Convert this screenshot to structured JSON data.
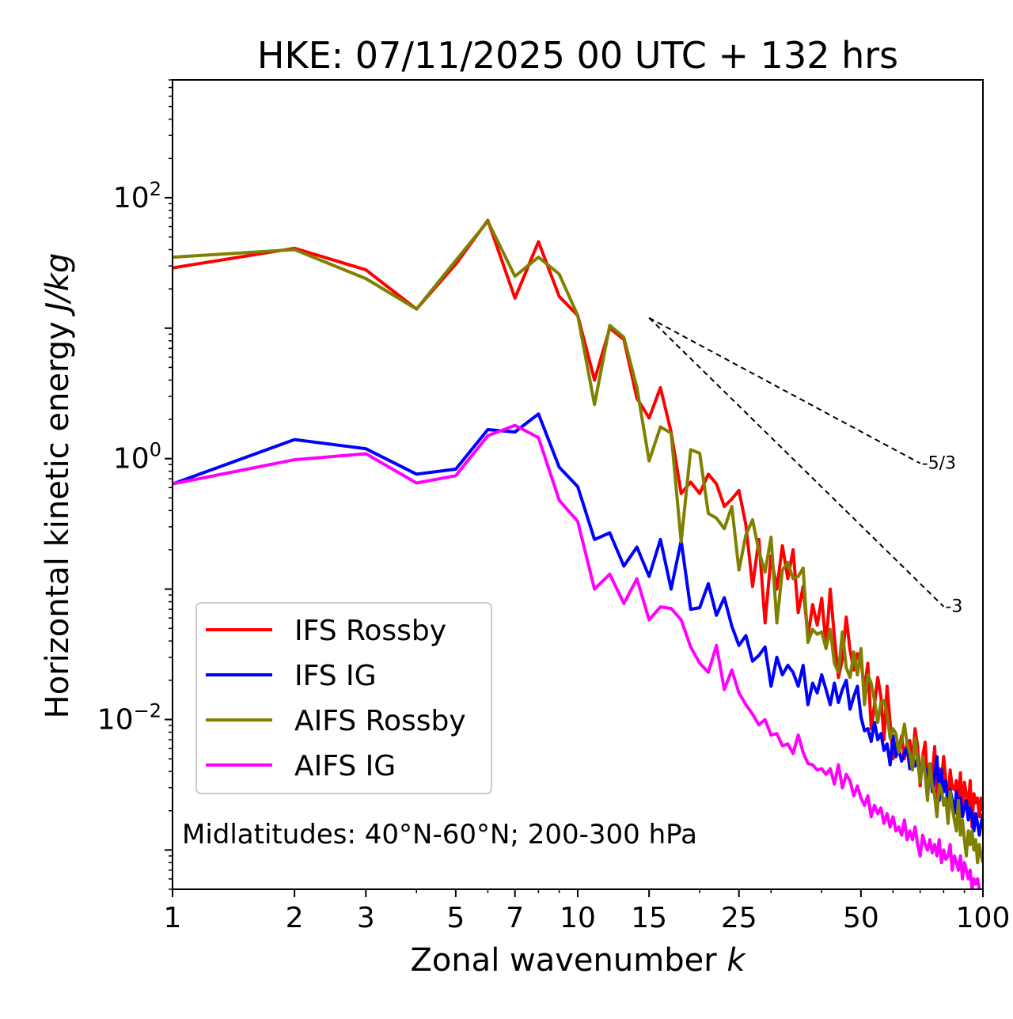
{
  "chart_data": {
    "type": "line",
    "title": "HKE: 07/11/2025 00 UTC + 132 hrs",
    "xlabel": "Zonal wavenumber",
    "xlabel_var": "k",
    "ylabel": "Horizontal kinetic energy",
    "ylabel_unit": "J/kg",
    "xscale": "log",
    "yscale": "log",
    "xlim": [
      1,
      100
    ],
    "ylim": [
      0.0005,
      800
    ],
    "x_tick_values": [
      1,
      2,
      3,
      5,
      7,
      10,
      15,
      25,
      50,
      100
    ],
    "x_tick_labels": [
      "1",
      "2",
      "3",
      "5",
      "7",
      "10",
      "15",
      "25",
      "50",
      "100"
    ],
    "y_tick_values": [
      100,
      1,
      0.01
    ],
    "y_tick_base": "10",
    "y_tick_exponents": [
      "2",
      "0",
      "−2"
    ],
    "annotation": "Midlatitudes: 40°N-60°N; 200-300 hPa",
    "legend_position": "lower-left",
    "reference_slopes": [
      {
        "label": "-5/3",
        "points": [
          [
            15,
            12
          ],
          [
            70,
            0.92
          ]
        ]
      },
      {
        "label": "-3",
        "points": [
          [
            15,
            12
          ],
          [
            80,
            0.0734
          ]
        ]
      }
    ],
    "series": [
      {
        "name": "IFS Rossby",
        "color": "#ff0000",
        "x": [
          1,
          2,
          3,
          4,
          5,
          6,
          7,
          8,
          9,
          10,
          11,
          12,
          13,
          14,
          15,
          16,
          17,
          18,
          19,
          20,
          21,
          22,
          23,
          24,
          25,
          26,
          27,
          28,
          29,
          30,
          31,
          32,
          33,
          34,
          35,
          36,
          37,
          38,
          39,
          40,
          41,
          42,
          43,
          44,
          45,
          46,
          47,
          48,
          49,
          50,
          51,
          52,
          53,
          54,
          55,
          56,
          57,
          58,
          59,
          60,
          61,
          62,
          63,
          64,
          65,
          66,
          67,
          68,
          69,
          70,
          71,
          72,
          73,
          74,
          75,
          76,
          77,
          78,
          79,
          80,
          81,
          82,
          83,
          84,
          85,
          86,
          87,
          88,
          89,
          90,
          91,
          92,
          93,
          94,
          95,
          96,
          97,
          98,
          99,
          100
        ],
        "y": [
          29,
          41,
          28,
          14,
          31,
          67,
          17,
          46,
          17.5,
          12.5,
          4,
          10,
          8.2,
          2.9,
          2.05,
          3.5,
          1.6,
          0.54,
          0.66,
          0.54,
          0.76,
          0.64,
          0.43,
          0.49,
          0.57,
          0.31,
          0.105,
          0.24,
          0.055,
          0.18,
          0.1,
          0.215,
          0.12,
          0.2,
          0.066,
          0.105,
          0.043,
          0.076,
          0.053,
          0.085,
          0.037,
          0.1,
          0.043,
          0.021,
          0.029,
          0.061,
          0.034,
          0.024,
          0.032,
          0.028,
          0.017,
          0.027,
          0.0085,
          0.013,
          0.021,
          0.015,
          0.007,
          0.018,
          0.0095,
          0.005,
          0.0065,
          0.0058,
          0.0075,
          0.005,
          0.0065,
          0.0069,
          0.0047,
          0.0085,
          0.0062,
          0.0031,
          0.0052,
          0.0067,
          0.0034,
          0.0045,
          0.0037,
          0.0062,
          0.0024,
          0.0042,
          0.0034,
          0.0052,
          0.0034,
          0.0022,
          0.0041,
          0.003,
          0.0029,
          0.0034,
          0.0023,
          0.0039,
          0.0019,
          0.0033,
          0.0027,
          0.0022,
          0.0034,
          0.0015,
          0.0027,
          0.0023,
          0.0025,
          0.0018,
          0.0025,
          0.002
        ]
      },
      {
        "name": "IFS IG",
        "color": "#0000ff",
        "x": [
          1,
          2,
          3,
          4,
          5,
          6,
          7,
          8,
          9,
          10,
          11,
          12,
          13,
          14,
          15,
          16,
          17,
          18,
          19,
          20,
          21,
          22,
          23,
          24,
          25,
          26,
          27,
          28,
          29,
          30,
          31,
          32,
          33,
          34,
          35,
          36,
          37,
          38,
          39,
          40,
          41,
          42,
          43,
          44,
          45,
          46,
          47,
          48,
          49,
          50,
          51,
          52,
          53,
          54,
          55,
          56,
          57,
          58,
          59,
          60,
          61,
          62,
          63,
          64,
          65,
          66,
          67,
          68,
          69,
          70,
          71,
          72,
          73,
          74,
          75,
          76,
          77,
          78,
          79,
          80,
          81,
          82,
          83,
          84,
          85,
          86,
          87,
          88,
          89,
          90,
          91,
          92,
          93,
          94,
          95,
          96,
          97,
          98,
          99,
          100
        ],
        "y": [
          0.64,
          1.4,
          1.19,
          0.76,
          0.83,
          1.67,
          1.6,
          2.2,
          0.86,
          0.61,
          0.24,
          0.27,
          0.15,
          0.21,
          0.125,
          0.24,
          0.1,
          0.235,
          0.07,
          0.072,
          0.11,
          0.063,
          0.086,
          0.052,
          0.037,
          0.044,
          0.028,
          0.031,
          0.036,
          0.018,
          0.03,
          0.022,
          0.026,
          0.023,
          0.018,
          0.026,
          0.013,
          0.019,
          0.016,
          0.022,
          0.017,
          0.013,
          0.019,
          0.0135,
          0.017,
          0.02,
          0.012,
          0.015,
          0.018,
          0.0105,
          0.0082,
          0.0085,
          0.0068,
          0.0095,
          0.007,
          0.0078,
          0.0058,
          0.0065,
          0.0045,
          0.0075,
          0.0052,
          0.006,
          0.0048,
          0.0055,
          0.0062,
          0.0042,
          0.005,
          0.0044,
          0.0052,
          0.0034,
          0.0048,
          0.0042,
          0.0036,
          0.0044,
          0.0028,
          0.0038,
          0.0052,
          0.0024,
          0.0041,
          0.0028,
          0.0034,
          0.0021,
          0.0029,
          0.0024,
          0.0019,
          0.0028,
          0.0022,
          0.0025,
          0.0018,
          0.0021,
          0.0024,
          0.0017,
          0.0021,
          0.0018,
          0.0014,
          0.0019,
          0.0016,
          0.0013,
          0.0016,
          0.0019
        ]
      },
      {
        "name": "AIFS Rossby",
        "color": "#808000",
        "x": [
          1,
          2,
          3,
          4,
          5,
          6,
          7,
          8,
          9,
          10,
          11,
          12,
          13,
          14,
          15,
          16,
          17,
          18,
          19,
          20,
          21,
          22,
          23,
          24,
          25,
          26,
          27,
          28,
          29,
          30,
          31,
          32,
          33,
          34,
          35,
          36,
          37,
          38,
          39,
          40,
          41,
          42,
          43,
          44,
          45,
          46,
          47,
          48,
          49,
          50,
          51,
          52,
          53,
          54,
          55,
          56,
          57,
          58,
          59,
          60,
          61,
          62,
          63,
          64,
          65,
          66,
          67,
          68,
          69,
          70,
          71,
          72,
          73,
          74,
          75,
          76,
          77,
          78,
          79,
          80,
          81,
          82,
          83,
          84,
          85,
          86,
          87,
          88,
          89,
          90,
          91,
          92,
          93,
          94,
          95,
          96,
          97,
          98,
          99,
          100
        ],
        "y": [
          35,
          40,
          24,
          14,
          33,
          66,
          25,
          35,
          26,
          12.5,
          2.6,
          10.5,
          8.5,
          3.5,
          0.96,
          1.75,
          1.57,
          0.23,
          1.17,
          1.1,
          0.38,
          0.35,
          0.29,
          0.43,
          0.14,
          0.26,
          0.34,
          0.195,
          0.135,
          0.25,
          0.055,
          0.14,
          0.16,
          0.12,
          0.125,
          0.145,
          0.039,
          0.049,
          0.045,
          0.047,
          0.035,
          0.049,
          0.027,
          0.023,
          0.047,
          0.025,
          0.021,
          0.033,
          0.022,
          0.035,
          0.013,
          0.022,
          0.019,
          0.014,
          0.0095,
          0.0135,
          0.014,
          0.011,
          0.0072,
          0.0085,
          0.0078,
          0.0056,
          0.0068,
          0.0092,
          0.0065,
          0.0055,
          0.0041,
          0.0072,
          0.0048,
          0.0033,
          0.0052,
          0.0038,
          0.0024,
          0.0046,
          0.0031,
          0.0026,
          0.0018,
          0.0032,
          0.0029,
          0.0022,
          0.0025,
          0.0016,
          0.0028,
          0.0021,
          0.0017,
          0.0014,
          0.0024,
          0.0013,
          0.0017,
          0.0012,
          0.0009,
          0.0014,
          0.0011,
          0.0014,
          0.001,
          0.0012,
          0.0008,
          0.0011,
          0.0009,
          0.0008
        ]
      },
      {
        "name": "AIFS IG",
        "color": "#ff00ff",
        "x": [
          1,
          2,
          3,
          4,
          5,
          6,
          7,
          8,
          9,
          10,
          11,
          12,
          13,
          14,
          15,
          16,
          17,
          18,
          19,
          20,
          21,
          22,
          23,
          24,
          25,
          26,
          27,
          28,
          29,
          30,
          31,
          32,
          33,
          34,
          35,
          36,
          37,
          38,
          39,
          40,
          41,
          42,
          43,
          44,
          45,
          46,
          47,
          48,
          49,
          50,
          51,
          52,
          53,
          54,
          55,
          56,
          57,
          58,
          59,
          60,
          61,
          62,
          63,
          64,
          65,
          66,
          67,
          68,
          69,
          70,
          71,
          72,
          73,
          74,
          75,
          76,
          77,
          78,
          79,
          80,
          81,
          82,
          83,
          84,
          85,
          86,
          87,
          88,
          89,
          90,
          91,
          92,
          93,
          94,
          95,
          96,
          97,
          98,
          99,
          100
        ],
        "y": [
          0.64,
          0.98,
          1.09,
          0.65,
          0.74,
          1.5,
          1.8,
          1.45,
          0.48,
          0.33,
          0.1,
          0.13,
          0.0775,
          0.12,
          0.058,
          0.073,
          0.071,
          0.058,
          0.036,
          0.027,
          0.023,
          0.037,
          0.017,
          0.024,
          0.016,
          0.013,
          0.011,
          0.0091,
          0.01,
          0.0076,
          0.0078,
          0.0063,
          0.0065,
          0.0055,
          0.0076,
          0.0056,
          0.0046,
          0.0045,
          0.0041,
          0.0042,
          0.0038,
          0.0042,
          0.0032,
          0.0045,
          0.003,
          0.0038,
          0.0034,
          0.0026,
          0.0031,
          0.0025,
          0.0022,
          0.0026,
          0.0018,
          0.0022,
          0.0019,
          0.0021,
          0.0016,
          0.0019,
          0.0015,
          0.0018,
          0.0014,
          0.0015,
          0.0013,
          0.0017,
          0.0012,
          0.0014,
          0.0012,
          0.0015,
          0.0011,
          0.0009,
          0.0013,
          0.0011,
          0.001,
          0.0012,
          0.00095,
          0.0011,
          0.0009,
          0.0012,
          0.0008,
          0.001,
          0.00085,
          0.0009,
          0.0011,
          0.0007,
          0.0009,
          0.0008,
          0.0007,
          0.0009,
          0.0006,
          0.0008,
          0.0007,
          0.0006,
          0.0007,
          0.0005,
          0.0006,
          0.00055,
          0.0006,
          0.0005,
          0.00045,
          0.0005
        ]
      }
    ]
  }
}
